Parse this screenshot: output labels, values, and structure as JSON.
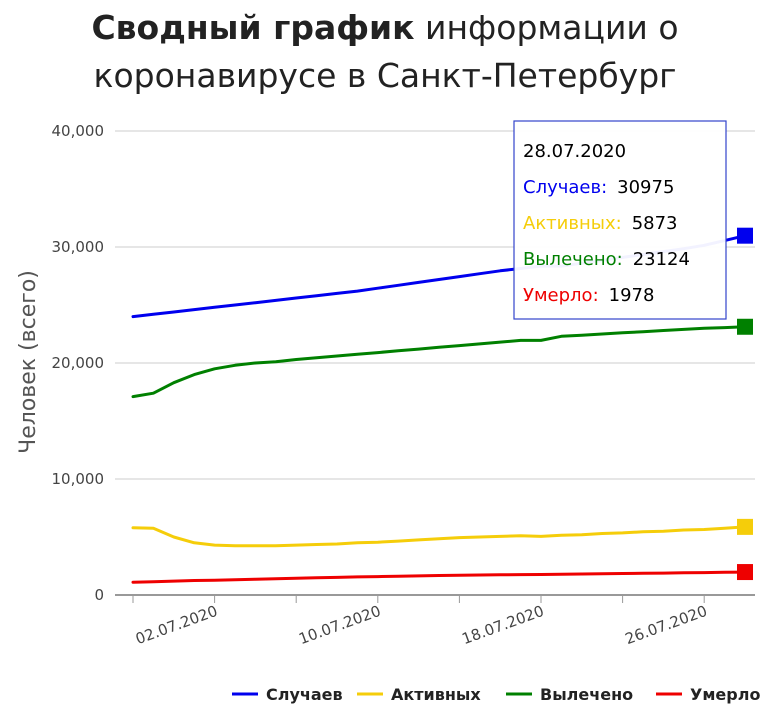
{
  "chart_data": {
    "type": "line",
    "title": {
      "bold": "Сводный график",
      "rest": "информации о",
      "line2": "коронавирусе в Санкт-Петербург"
    },
    "ylabel": "Человек (всего)",
    "xlabel": "",
    "ylim": [
      0,
      40000
    ],
    "y_ticks": [
      "0",
      "10,000",
      "20,000",
      "30,000",
      "40,000"
    ],
    "y_tick_values": [
      0,
      10000,
      20000,
      30000,
      40000
    ],
    "x_range": [
      "28.06.2020",
      "28.07.2020"
    ],
    "x_tick_labels": [
      "02.07.2020",
      "10.07.2020",
      "18.07.2020",
      "26.07.2020"
    ],
    "grid": true,
    "legend_position": "bottom-right",
    "x": [
      "28.06.2020",
      "29.06.2020",
      "30.06.2020",
      "01.07.2020",
      "02.07.2020",
      "03.07.2020",
      "04.07.2020",
      "05.07.2020",
      "06.07.2020",
      "07.07.2020",
      "08.07.2020",
      "09.07.2020",
      "10.07.2020",
      "11.07.2020",
      "12.07.2020",
      "13.07.2020",
      "14.07.2020",
      "15.07.2020",
      "16.07.2020",
      "17.07.2020",
      "18.07.2020",
      "19.07.2020",
      "20.07.2020",
      "21.07.2020",
      "22.07.2020",
      "23.07.2020",
      "24.07.2020",
      "25.07.2020",
      "26.07.2020",
      "27.07.2020",
      "28.07.2020"
    ],
    "series": [
      {
        "name": "Случаев",
        "color": "#0000ee",
        "values": [
          24000,
          24200,
          24400,
          24600,
          24800,
          25000,
          25200,
          25400,
          25600,
          25800,
          26000,
          26200,
          26450,
          26700,
          26950,
          27200,
          27450,
          27700,
          27950,
          28150,
          28350,
          28350,
          28600,
          28850,
          29100,
          29350,
          29600,
          29850,
          30150,
          30550,
          30975
        ]
      },
      {
        "name": "Активных",
        "color": "#f5cd0a",
        "values": [
          5800,
          5750,
          5000,
          4500,
          4300,
          4250,
          4250,
          4250,
          4300,
          4350,
          4400,
          4500,
          4550,
          4650,
          4750,
          4850,
          4950,
          5000,
          5050,
          5100,
          5050,
          5150,
          5200,
          5300,
          5350,
          5450,
          5500,
          5600,
          5650,
          5750,
          5873
        ]
      },
      {
        "name": "Вылечено",
        "color": "#008000",
        "values": [
          17100,
          17400,
          18300,
          19000,
          19500,
          19800,
          20000,
          20100,
          20300,
          20450,
          20600,
          20750,
          20900,
          21050,
          21200,
          21350,
          21500,
          21650,
          21800,
          21950,
          21950,
          22300,
          22400,
          22500,
          22600,
          22700,
          22800,
          22900,
          23000,
          23050,
          23124
        ]
      },
      {
        "name": "Умерло",
        "color": "#ee0000",
        "values": [
          1100,
          1150,
          1200,
          1250,
          1280,
          1320,
          1360,
          1400,
          1440,
          1480,
          1520,
          1560,
          1590,
          1620,
          1650,
          1680,
          1700,
          1720,
          1740,
          1760,
          1770,
          1790,
          1810,
          1830,
          1850,
          1870,
          1890,
          1910,
          1930,
          1955,
          1978
        ]
      }
    ],
    "tooltip": {
      "date": "28.07.2020",
      "rows": [
        {
          "label": "Случаев:",
          "value": "30975",
          "color": "#0000ee"
        },
        {
          "label": "Активных:",
          "value": "5873",
          "color": "#f5cd0a"
        },
        {
          "label": "Вылечено:",
          "value": "23124",
          "color": "#008000"
        },
        {
          "label": "Умерло:",
          "value": "1978",
          "color": "#ee0000"
        }
      ]
    }
  }
}
